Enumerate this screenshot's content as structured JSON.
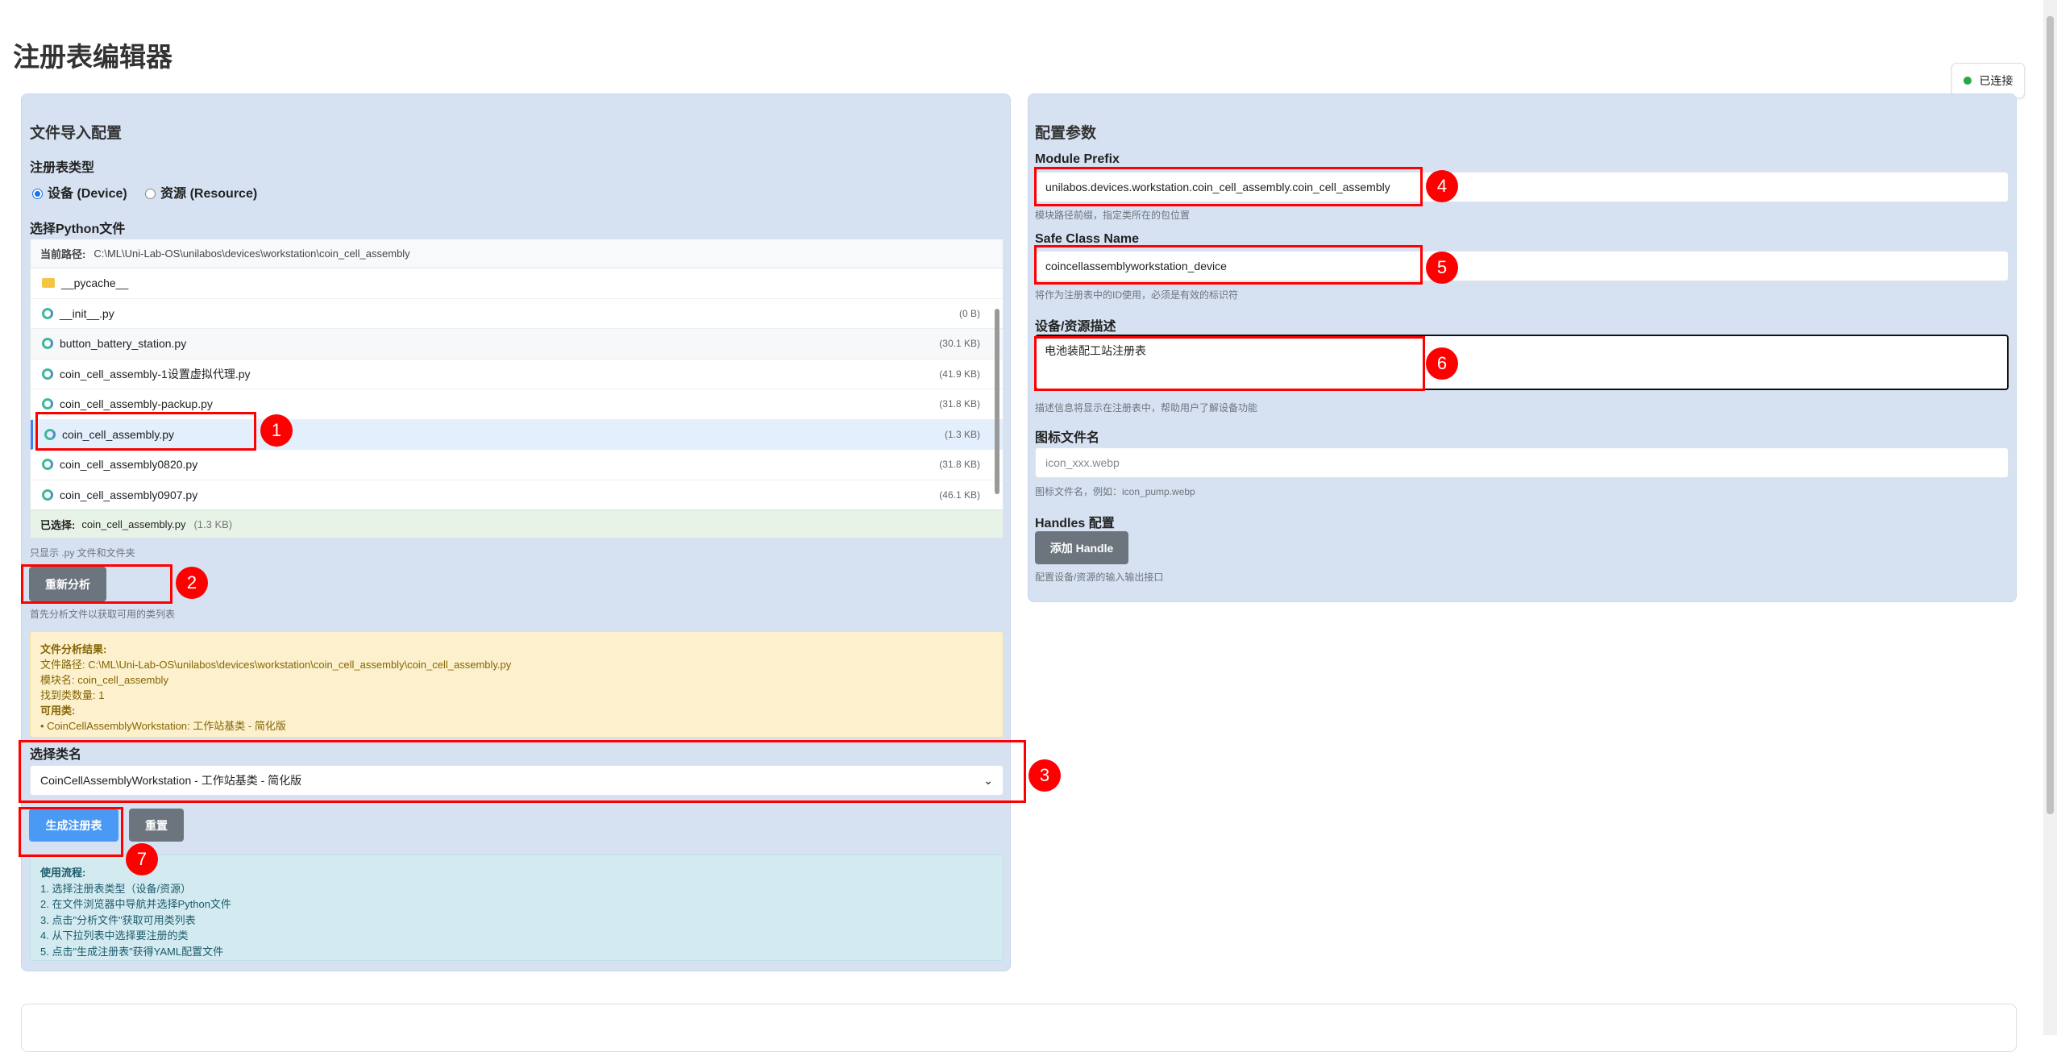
{
  "title": "注册表编辑器",
  "status": {
    "label": "已连接",
    "color": "#28a745"
  },
  "left": {
    "heading": "文件导入配置",
    "type_label": "注册表类型",
    "radios": [
      {
        "label": "设备 (Device)",
        "checked": true
      },
      {
        "label": "资源 (Resource)",
        "checked": false
      }
    ],
    "file_label": "选择Python文件",
    "path_label": "当前路径:",
    "path": "C:\\ML\\Uni-Lab-OS\\unilabos\\devices\\workstation\\coin_cell_assembly",
    "files": [
      {
        "name": "__pycache__",
        "size": "",
        "icon": "folder-icon"
      },
      {
        "name": "__init__.py",
        "size": "(0 B)",
        "icon": "python-file-icon"
      },
      {
        "name": "button_battery_station.py",
        "size": "(30.1 KB)",
        "icon": "python-file-icon"
      },
      {
        "name": "coin_cell_assembly-1设置虚拟代理.py",
        "size": "(41.9 KB)",
        "icon": "python-file-icon"
      },
      {
        "name": "coin_cell_assembly-packup.py",
        "size": "(31.8 KB)",
        "icon": "python-file-icon"
      },
      {
        "name": "coin_cell_assembly.py",
        "size": "(1.3 KB)",
        "icon": "python-file-icon",
        "selected": true
      },
      {
        "name": "coin_cell_assembly0820.py",
        "size": "(31.8 KB)",
        "icon": "python-file-icon"
      },
      {
        "name": "coin_cell_assembly0907.py",
        "size": "(46.1 KB)",
        "icon": "python-file-icon"
      }
    ],
    "selected_label": "已选择:",
    "selected_name": "coin_cell_assembly.py",
    "selected_size": "(1.3 KB)",
    "filter_hint": "只显示 .py 文件和文件夹",
    "reanalyze": "重新分析",
    "analyze_hint": "首先分析文件以获取可用的类列表",
    "result": {
      "title": "文件分析结果:",
      "path": "文件路径: C:\\ML\\Uni-Lab-OS\\unilabos\\devices\\workstation\\coin_cell_assembly\\coin_cell_assembly.py",
      "module": "模块名: coin_cell_assembly",
      "count": "找到类数量: 1",
      "classes_title": "可用类:",
      "class_item": "• CoinCellAssemblyWorkstation: 工作站基类 - 简化版"
    },
    "class_label": "选择类名",
    "class_value": "CoinCellAssemblyWorkstation - 工作站基类 - 简化版",
    "generate": "生成注册表",
    "reset": "重置",
    "usage": {
      "title": "使用流程:",
      "steps": [
        "1. 选择注册表类型（设备/资源）",
        "2. 在文件浏览器中导航并选择Python文件",
        "3. 点击\"分析文件\"获取可用类列表",
        "4. 从下拉列表中选择要注册的类",
        "5. 点击\"生成注册表\"获得YAML配置文件"
      ]
    }
  },
  "right": {
    "heading": "配置参数",
    "module_prefix_label": "Module Prefix",
    "module_prefix": "unilabos.devices.workstation.coin_cell_assembly.coin_cell_assembly",
    "module_prefix_hint": "模块路径前缀，指定类所在的包位置",
    "safe_class_label": "Safe Class Name",
    "safe_class": "coincellassemblyworkstation_device",
    "safe_class_hint": "将作为注册表中的ID使用，必须是有效的标识符",
    "desc_label": "设备/资源描述",
    "desc": "电池装配工站注册表",
    "desc_hint": "描述信息将显示在注册表中，帮助用户了解设备功能",
    "icon_label": "图标文件名",
    "icon_placeholder": "icon_xxx.webp",
    "icon_hint": "图标文件名，例如：icon_pump.webp",
    "handles_label": "Handles 配置",
    "add_handle": "添加 Handle",
    "handles_hint": "配置设备/资源的输入输出接口"
  },
  "annotations": [
    "1",
    "2",
    "3",
    "4",
    "5",
    "6",
    "7"
  ]
}
